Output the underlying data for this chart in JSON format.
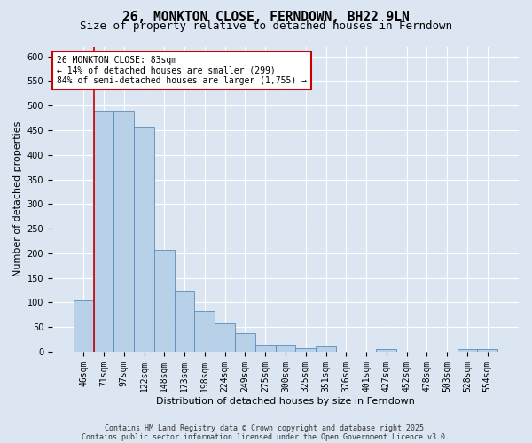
{
  "title": "26, MONKTON CLOSE, FERNDOWN, BH22 9LN",
  "subtitle": "Size of property relative to detached houses in Ferndown",
  "xlabel": "Distribution of detached houses by size in Ferndown",
  "ylabel": "Number of detached properties",
  "footer": "Contains HM Land Registry data © Crown copyright and database right 2025.\nContains public sector information licensed under the Open Government Licence v3.0.",
  "categories": [
    "46sqm",
    "71sqm",
    "97sqm",
    "122sqm",
    "148sqm",
    "173sqm",
    "198sqm",
    "224sqm",
    "249sqm",
    "275sqm",
    "300sqm",
    "325sqm",
    "351sqm",
    "376sqm",
    "401sqm",
    "427sqm",
    "452sqm",
    "478sqm",
    "503sqm",
    "528sqm",
    "554sqm"
  ],
  "values": [
    105,
    490,
    490,
    458,
    207,
    122,
    83,
    57,
    38,
    15,
    15,
    8,
    10,
    0,
    0,
    5,
    0,
    0,
    0,
    5,
    5
  ],
  "bar_color": "#b8d0e8",
  "bar_edge_color": "#5b8db8",
  "vline_x_idx": 1,
  "vline_color": "#cc0000",
  "annotation_text": "26 MONKTON CLOSE: 83sqm\n← 14% of detached houses are smaller (299)\n84% of semi-detached houses are larger (1,755) →",
  "annotation_box_facecolor": "#ffffff",
  "annotation_box_edgecolor": "#cc0000",
  "ylim": [
    0,
    620
  ],
  "yticks": [
    0,
    50,
    100,
    150,
    200,
    250,
    300,
    350,
    400,
    450,
    500,
    550,
    600
  ],
  "bg_color": "#dce6f2",
  "grid_color": "#ffffff",
  "title_fontsize": 10.5,
  "subtitle_fontsize": 9,
  "axis_fontsize": 8,
  "tick_fontsize": 7,
  "footer_fontsize": 6
}
